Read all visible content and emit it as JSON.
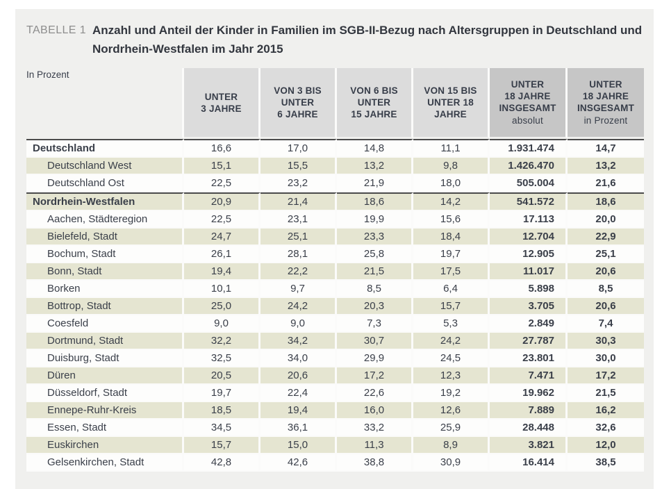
{
  "title": {
    "tag": "TABELLE 1",
    "text": "Anzahl und Anteil der Kinder in Familien im SGB-II-Bezug nach Altersgruppen in Deutschland und Nordrhein-Westfalen im Jahr 2015"
  },
  "unit_label": "In Prozent",
  "colors": {
    "panel": "#f0f0ee",
    "head-light": "#dcdcdc",
    "head-dark": "#c6c6c6",
    "stripe": "#e5e5d1",
    "rule": "#4b4b4b"
  },
  "columns": [
    {
      "label": "UNTER\n3 JAHRE",
      "sublabel": "",
      "emphasis": false
    },
    {
      "label": "VON 3 BIS\nUNTER\n6 JAHRE",
      "sublabel": "",
      "emphasis": false
    },
    {
      "label": "VON 6 BIS\nUNTER\n15 JAHRE",
      "sublabel": "",
      "emphasis": false
    },
    {
      "label": "VON 15 BIS\nUNTER 18\nJAHRE",
      "sublabel": "",
      "emphasis": false
    },
    {
      "label": "UNTER\n18 JAHRE\nINSGESAMT",
      "sublabel": "absolut",
      "emphasis": true
    },
    {
      "label": "UNTER\n18 JAHRE\nINSGESAMT",
      "sublabel": "in Prozent",
      "emphasis": true
    }
  ],
  "rows": [
    {
      "label": "Deutschland",
      "bold": true,
      "indent": false,
      "rule_above": true,
      "values": [
        "16,6",
        "17,0",
        "14,8",
        "11,1",
        "1.931.474",
        "14,7"
      ]
    },
    {
      "label": "Deutschland West",
      "bold": false,
      "indent": true,
      "rule_above": false,
      "values": [
        "15,1",
        "15,5",
        "13,2",
        "9,8",
        "1.426.470",
        "13,2"
      ]
    },
    {
      "label": "Deutschland Ost",
      "bold": false,
      "indent": true,
      "rule_above": false,
      "values": [
        "22,5",
        "23,2",
        "21,9",
        "18,0",
        "505.004",
        "21,6"
      ]
    },
    {
      "label": "Nordrhein-Westfalen",
      "bold": true,
      "indent": false,
      "rule_above": true,
      "values": [
        "20,9",
        "21,4",
        "18,6",
        "14,2",
        "541.572",
        "18,6"
      ]
    },
    {
      "label": "Aachen, Städteregion",
      "bold": false,
      "indent": true,
      "rule_above": false,
      "values": [
        "22,5",
        "23,1",
        "19,9",
        "15,6",
        "17.113",
        "20,0"
      ]
    },
    {
      "label": "Bielefeld, Stadt",
      "bold": false,
      "indent": true,
      "rule_above": false,
      "values": [
        "24,7",
        "25,1",
        "23,3",
        "18,4",
        "12.704",
        "22,9"
      ]
    },
    {
      "label": "Bochum, Stadt",
      "bold": false,
      "indent": true,
      "rule_above": false,
      "values": [
        "26,1",
        "28,1",
        "25,8",
        "19,7",
        "12.905",
        "25,1"
      ]
    },
    {
      "label": "Bonn, Stadt",
      "bold": false,
      "indent": true,
      "rule_above": false,
      "values": [
        "19,4",
        "22,2",
        "21,5",
        "17,5",
        "11.017",
        "20,6"
      ]
    },
    {
      "label": "Borken",
      "bold": false,
      "indent": true,
      "rule_above": false,
      "values": [
        "10,1",
        "9,7",
        "8,5",
        "6,4",
        "5.898",
        "8,5"
      ]
    },
    {
      "label": "Bottrop, Stadt",
      "bold": false,
      "indent": true,
      "rule_above": false,
      "values": [
        "25,0",
        "24,2",
        "20,3",
        "15,7",
        "3.705",
        "20,6"
      ]
    },
    {
      "label": "Coesfeld",
      "bold": false,
      "indent": true,
      "rule_above": false,
      "values": [
        "9,0",
        "9,0",
        "7,3",
        "5,3",
        "2.849",
        "7,4"
      ]
    },
    {
      "label": "Dortmund, Stadt",
      "bold": false,
      "indent": true,
      "rule_above": false,
      "values": [
        "32,2",
        "34,2",
        "30,7",
        "24,2",
        "27.787",
        "30,3"
      ]
    },
    {
      "label": "Duisburg, Stadt",
      "bold": false,
      "indent": true,
      "rule_above": false,
      "values": [
        "32,5",
        "34,0",
        "29,9",
        "24,5",
        "23.801",
        "30,0"
      ]
    },
    {
      "label": "Düren",
      "bold": false,
      "indent": true,
      "rule_above": false,
      "values": [
        "20,5",
        "20,6",
        "17,2",
        "12,3",
        "7.471",
        "17,2"
      ]
    },
    {
      "label": "Düsseldorf, Stadt",
      "bold": false,
      "indent": true,
      "rule_above": false,
      "values": [
        "19,7",
        "22,4",
        "22,6",
        "19,2",
        "19.962",
        "21,5"
      ]
    },
    {
      "label": "Ennepe-Ruhr-Kreis",
      "bold": false,
      "indent": true,
      "rule_above": false,
      "values": [
        "18,5",
        "19,4",
        "16,0",
        "12,6",
        "7.889",
        "16,2"
      ]
    },
    {
      "label": "Essen, Stadt",
      "bold": false,
      "indent": true,
      "rule_above": false,
      "values": [
        "34,5",
        "36,1",
        "33,2",
        "25,9",
        "28.448",
        "32,6"
      ]
    },
    {
      "label": "Euskirchen",
      "bold": false,
      "indent": true,
      "rule_above": false,
      "values": [
        "15,7",
        "15,0",
        "11,3",
        "8,9",
        "3.821",
        "12,0"
      ]
    },
    {
      "label": "Gelsenkirchen, Stadt",
      "bold": false,
      "indent": true,
      "rule_above": false,
      "values": [
        "42,8",
        "42,6",
        "38,8",
        "30,9",
        "16.414",
        "38,5"
      ]
    }
  ]
}
